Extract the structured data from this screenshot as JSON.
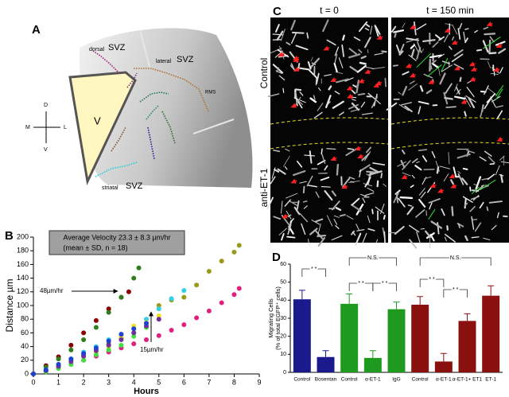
{
  "panel_labels": {
    "a": "A",
    "b": "B",
    "c": "C",
    "d": "D"
  },
  "diagram": {
    "dorsal": "dorsal",
    "dorsal_svz": "SVZ",
    "lateral": "lateral",
    "lateral_svz": "SVZ",
    "rms": "RMS",
    "ventricle": "V",
    "striatal": "striatal",
    "striatal_svz": "SVZ",
    "compass": {
      "d": "D",
      "v": "V",
      "m": "M",
      "l": "L"
    }
  },
  "images": {
    "columns": [
      "t = 0",
      "t = 150 min"
    ],
    "rows": [
      "Control",
      "anti-ET-1"
    ]
  },
  "chart_data": [
    {
      "type": "scatter",
      "xlabel": "Hours",
      "ylabel": "Distance µm",
      "xlim": [
        0,
        9
      ],
      "ylim": [
        0,
        200
      ],
      "xticks": [
        0,
        1,
        2,
        3,
        4,
        5,
        6,
        7,
        8,
        9
      ],
      "yticks": [
        0,
        20,
        40,
        60,
        80,
        100,
        120,
        140,
        160,
        180,
        200
      ],
      "box_text": [
        "Average Velocity  23.3 ± 8.3 µm/hr",
        "(mean ± SD, n = 18)"
      ],
      "annotations": [
        "48µm/hr",
        "15µm/hr"
      ],
      "series": [
        {
          "color": "#8b0000",
          "x": [
            0,
            0.5,
            1,
            1.5,
            2,
            2.5,
            3,
            3.5,
            3.8
          ],
          "values": [
            0,
            12,
            25,
            42,
            60,
            78,
            95,
            112,
            120
          ]
        },
        {
          "color": "#2e7d1f",
          "x": [
            0,
            0.5,
            1,
            1.5,
            2,
            2.5,
            3,
            3.5,
            4,
            4.2
          ],
          "values": [
            0,
            10,
            22,
            35,
            50,
            68,
            90,
            112,
            140,
            155
          ]
        },
        {
          "color": "#9a9a1a",
          "x": [
            0,
            0.5,
            1,
            1.5,
            2,
            2.5,
            3,
            3.5,
            4,
            4.5,
            5,
            5.5,
            6,
            6.5,
            7,
            7.5,
            8,
            8.2
          ],
          "values": [
            0,
            5,
            12,
            20,
            28,
            36,
            44,
            52,
            60,
            68,
            100,
            108,
            112,
            130,
            150,
            165,
            178,
            188
          ]
        },
        {
          "color": "#e0207f",
          "x": [
            0,
            0.5,
            1,
            1.5,
            2,
            2.5,
            3,
            3.5,
            4,
            4.5,
            5,
            5.5,
            6,
            6.5,
            7,
            7.5,
            8,
            8.2
          ],
          "values": [
            0,
            4,
            9,
            14,
            20,
            26,
            32,
            38,
            44,
            50,
            56,
            64,
            72,
            82,
            92,
            104,
            116,
            125
          ]
        },
        {
          "color": "#30d0e8",
          "x": [
            0,
            0.5,
            1,
            1.5,
            2,
            2.5,
            3,
            3.5,
            4,
            4.5,
            5,
            5.5,
            6
          ],
          "values": [
            0,
            6,
            14,
            22,
            32,
            40,
            50,
            58,
            66,
            80,
            95,
            110,
            122
          ]
        },
        {
          "color": "#f0e020",
          "x": [
            0,
            0.5,
            1,
            1.5,
            2,
            2.5,
            3,
            3.5,
            4,
            4.5,
            5
          ],
          "values": [
            0,
            5,
            12,
            18,
            25,
            32,
            40,
            55,
            70,
            75,
            85
          ]
        },
        {
          "color": "#40e040",
          "x": [
            0,
            0.5,
            1,
            1.5,
            2,
            2.5,
            3,
            3.5,
            4,
            4.5
          ],
          "values": [
            0,
            3,
            8,
            14,
            20,
            28,
            35,
            42,
            55,
            68
          ]
        },
        {
          "color": "#7030a0",
          "x": [
            0,
            0.5,
            1,
            1.5,
            2,
            2.5,
            3,
            3.5,
            4,
            4.5,
            5
          ],
          "values": [
            0,
            5,
            11,
            18,
            26,
            34,
            42,
            50,
            60,
            70,
            80
          ]
        },
        {
          "color": "#2040d0",
          "x": [
            0,
            0.5,
            1,
            1.5,
            2,
            2.5,
            3,
            3.5,
            4,
            4.5
          ],
          "values": [
            0,
            6,
            14,
            22,
            30,
            38,
            48,
            58,
            66,
            74
          ]
        }
      ]
    },
    {
      "type": "bar",
      "ylabel": [
        "Migrating Cells",
        "(% of total EGFP⁺ cells)"
      ],
      "ylim": [
        0,
        60
      ],
      "yticks": [
        0,
        10,
        20,
        30,
        40,
        50,
        60
      ],
      "categories": [
        "Control",
        "Bosentan",
        "Control",
        "α-ET-1",
        "IgG",
        "Control",
        "α-ET-1",
        "α-ET-1+ ET1",
        "ET-1"
      ],
      "values": [
        40.5,
        8.5,
        38,
        8,
        35,
        37.5,
        6,
        28.5,
        42.5
      ],
      "errors": [
        5,
        3.5,
        5.5,
        4,
        4,
        4.5,
        4.5,
        4,
        5.5
      ],
      "colors": [
        "#1a1a8c",
        "#1a1a8c",
        "#1e9a1e",
        "#1e9a1e",
        "#1e9a1e",
        "#8b1010",
        "#8b1010",
        "#8b1010",
        "#8b1010"
      ],
      "significance": [
        "* *",
        "N.S.",
        "* *",
        "* *",
        "N.S.",
        "* *",
        "* *"
      ]
    }
  ]
}
